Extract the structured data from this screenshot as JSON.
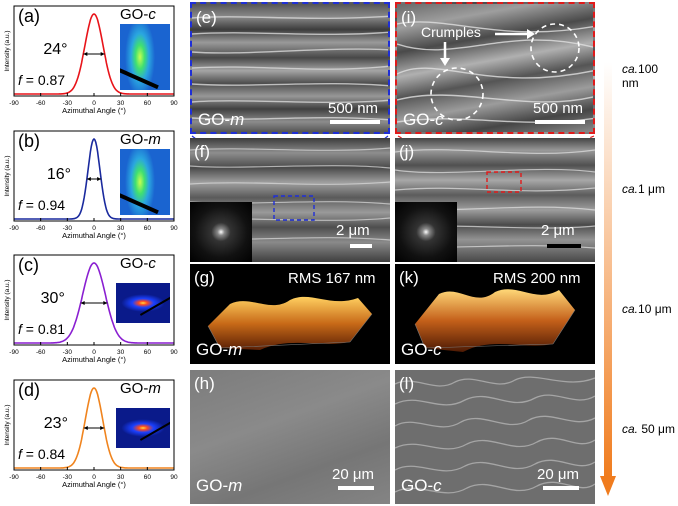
{
  "plots": [
    {
      "label": "(a)",
      "sample": "GO-",
      "sample_suffix": "c",
      "angle": "24°",
      "f": "f = 0.87",
      "color": "#e8141a",
      "width_deg": 24
    },
    {
      "label": "(b)",
      "sample": "GO-",
      "sample_suffix": "m",
      "angle": "16°",
      "f": "f = 0.94",
      "color": "#1a2a9e",
      "width_deg": 16
    },
    {
      "label": "(c)",
      "sample": "GO-",
      "sample_suffix": "c",
      "angle": "30°",
      "f": "f = 0.81",
      "color": "#8a1fd1",
      "width_deg": 30
    },
    {
      "label": "(d)",
      "sample": "GO-",
      "sample_suffix": "m",
      "angle": "23°",
      "f": "f = 0.84",
      "color": "#f0841e",
      "width_deg": 23
    }
  ],
  "axis": {
    "ylabel": "Intensity (a.u.)",
    "xlabel": "Azimuthal Angle (°)",
    "ticks": [
      "-90",
      "-60",
      "-30",
      "0",
      "30",
      "60",
      "90"
    ]
  },
  "images": {
    "e": {
      "label": "(e)",
      "sample": "GO-",
      "suffix": "m",
      "scale": "500 nm"
    },
    "i": {
      "label": "(i)",
      "sample": "GO-",
      "suffix": "c",
      "scale": "500 nm",
      "annotation": "Crumples"
    },
    "f": {
      "label": "(f)",
      "scale": "2 μm"
    },
    "j": {
      "label": "(j)",
      "scale": "2 μm"
    },
    "g": {
      "label": "(g)",
      "sample": "GO-",
      "suffix": "m",
      "rms": "RMS 167 nm"
    },
    "k": {
      "label": "(k)",
      "sample": "GO-",
      "suffix": "c",
      "rms": "RMS 200 nm"
    },
    "h": {
      "label": "(h)",
      "sample": "GO-",
      "suffix": "m",
      "scale": "20 μm"
    },
    "l": {
      "label": "(l)",
      "sample": "GO-",
      "suffix": "c",
      "scale": "20 μm"
    }
  },
  "scale_column": [
    {
      "prefix": "ca.",
      "value": "100 nm"
    },
    {
      "prefix": "ca.",
      "value": "1 μm"
    },
    {
      "prefix": "ca.",
      "value": "10 μm"
    },
    {
      "prefix": "ca.",
      "value": " 50 μm"
    }
  ],
  "colors": {
    "arrow_top": "#ffffff",
    "arrow_bottom": "#f07c1e",
    "frame_m": "#1f2fd6",
    "frame_c": "#e01a1a"
  }
}
